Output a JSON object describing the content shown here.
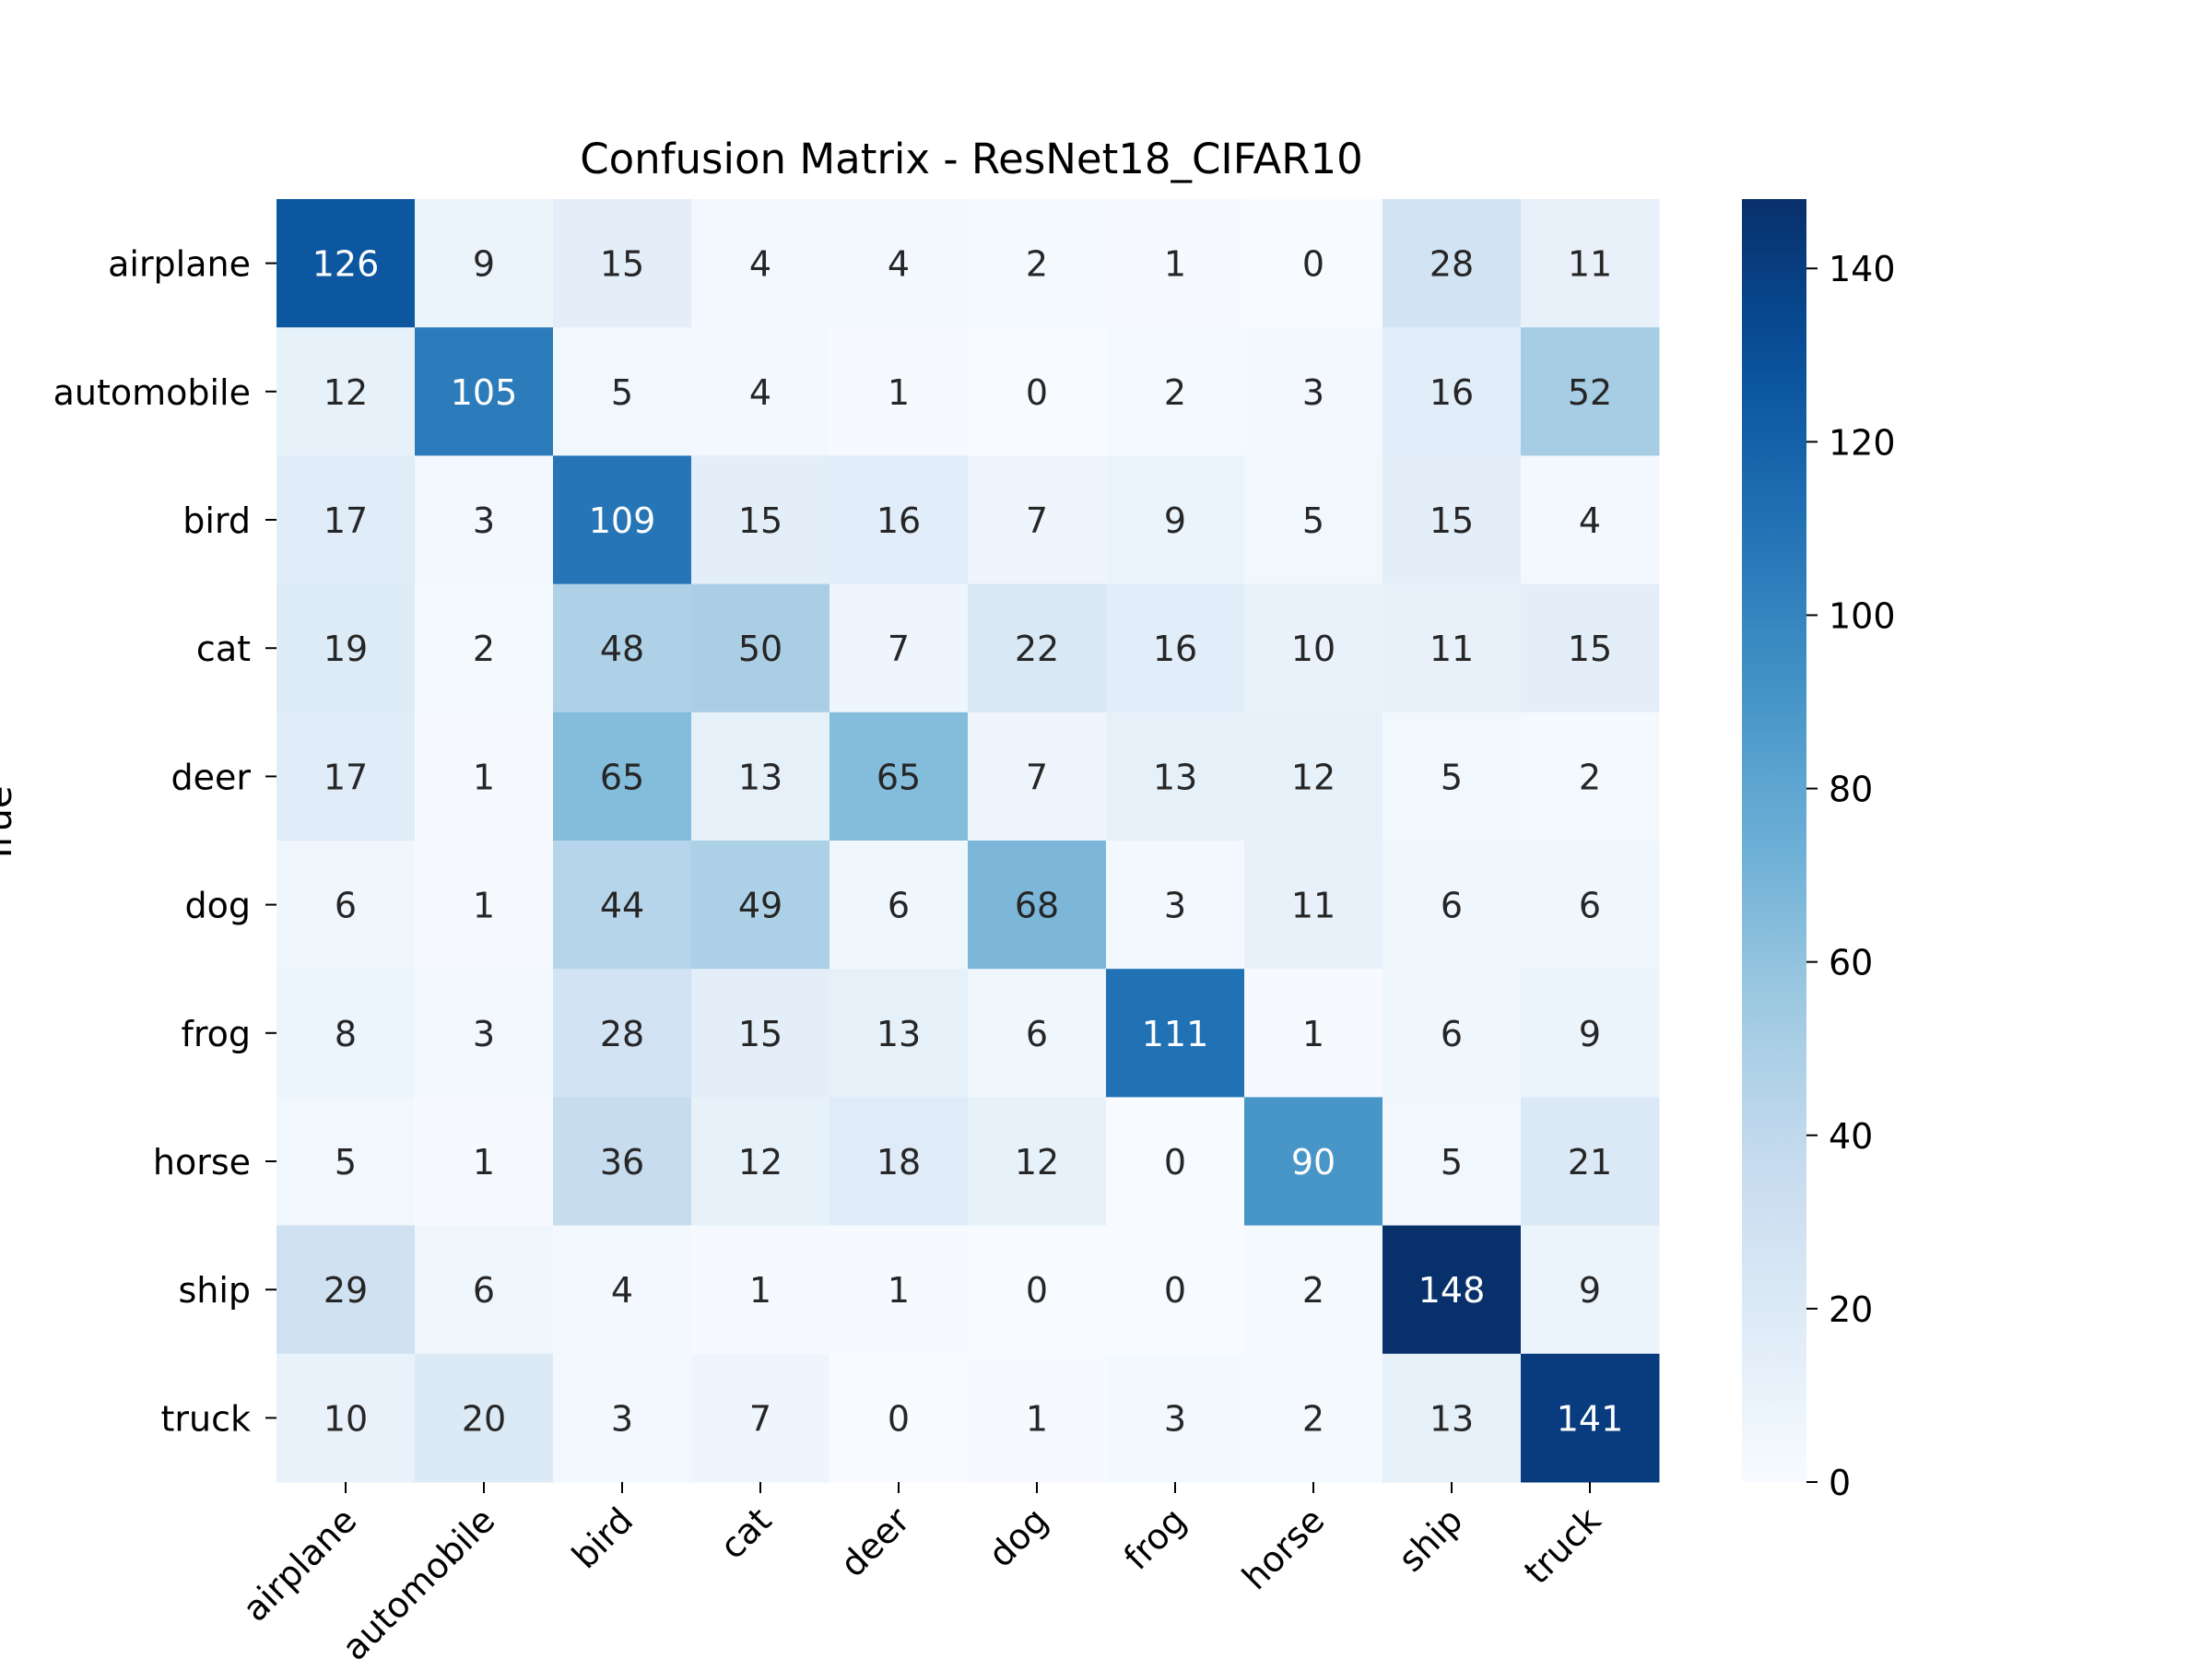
{
  "chart_data": {
    "type": "heatmap",
    "title": "Confusion Matrix - ResNet18_CIFAR10",
    "ylabel": "True",
    "xlabel": "",
    "rows": [
      "airplane",
      "automobile",
      "bird",
      "cat",
      "deer",
      "dog",
      "frog",
      "horse",
      "ship",
      "truck"
    ],
    "cols": [
      "airplane",
      "automobile",
      "bird",
      "cat",
      "deer",
      "dog",
      "frog",
      "horse",
      "ship",
      "truck"
    ],
    "values": [
      [
        126,
        9,
        15,
        4,
        4,
        2,
        1,
        0,
        28,
        11
      ],
      [
        12,
        105,
        5,
        4,
        1,
        0,
        2,
        3,
        16,
        52
      ],
      [
        17,
        3,
        109,
        15,
        16,
        7,
        9,
        5,
        15,
        4
      ],
      [
        19,
        2,
        48,
        50,
        7,
        22,
        16,
        10,
        11,
        15
      ],
      [
        17,
        1,
        65,
        13,
        65,
        7,
        13,
        12,
        5,
        2
      ],
      [
        6,
        1,
        44,
        49,
        6,
        68,
        3,
        11,
        6,
        6
      ],
      [
        8,
        3,
        28,
        15,
        13,
        6,
        111,
        1,
        6,
        9
      ],
      [
        5,
        1,
        36,
        12,
        18,
        12,
        0,
        90,
        5,
        21
      ],
      [
        29,
        6,
        4,
        1,
        1,
        0,
        0,
        2,
        148,
        9
      ],
      [
        10,
        20,
        3,
        7,
        0,
        1,
        3,
        2,
        13,
        141
      ]
    ],
    "colorbar": {
      "range": [
        0,
        148
      ],
      "ticks": [
        0,
        20,
        40,
        60,
        80,
        100,
        120,
        140
      ]
    },
    "colormap": "Blues",
    "colors": {
      "low": "#f7fbff",
      "high": "#08306b",
      "text_dark": "#262626",
      "text_light": "#ffffff"
    }
  }
}
